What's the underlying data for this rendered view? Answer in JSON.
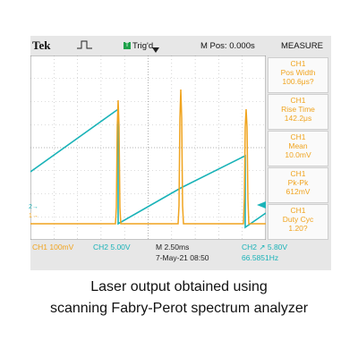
{
  "scope": {
    "brand": "Tek",
    "trigger_state": "Trig'd",
    "trigger_icon": "T",
    "mpos": "M Pos: 0.000s",
    "measure_title": "MEASURE",
    "measurements": [
      {
        "channel": "CH1",
        "name": "Pos Width",
        "value": "100.6μs?"
      },
      {
        "channel": "CH1",
        "name": "Rise Time",
        "value": "142.2μs"
      },
      {
        "channel": "CH1",
        "name": "Mean",
        "value": "10.0mV"
      },
      {
        "channel": "CH1",
        "name": "Pk-Pk",
        "value": "612mV"
      },
      {
        "channel": "CH1",
        "name": "Duty Cyc",
        "value": "1.20?"
      }
    ],
    "bottom": {
      "ch1": "CH1  100mV",
      "ch2": "CH2  5.00V",
      "timebase": "M 2.50ms",
      "date": "7-May-21 08:50",
      "trigger": "CH2 ↗ 5.80V",
      "frequency": "66.5851Hz"
    },
    "marker_ch2": "2→",
    "marker_ch1": "1→",
    "colors": {
      "ch1": "#f0a41f",
      "ch2": "#1ab3b8"
    }
  },
  "caption": {
    "line1": "Laser output obtained using",
    "line2": "scanning Fabry-Perot spectrum analyzer"
  }
}
